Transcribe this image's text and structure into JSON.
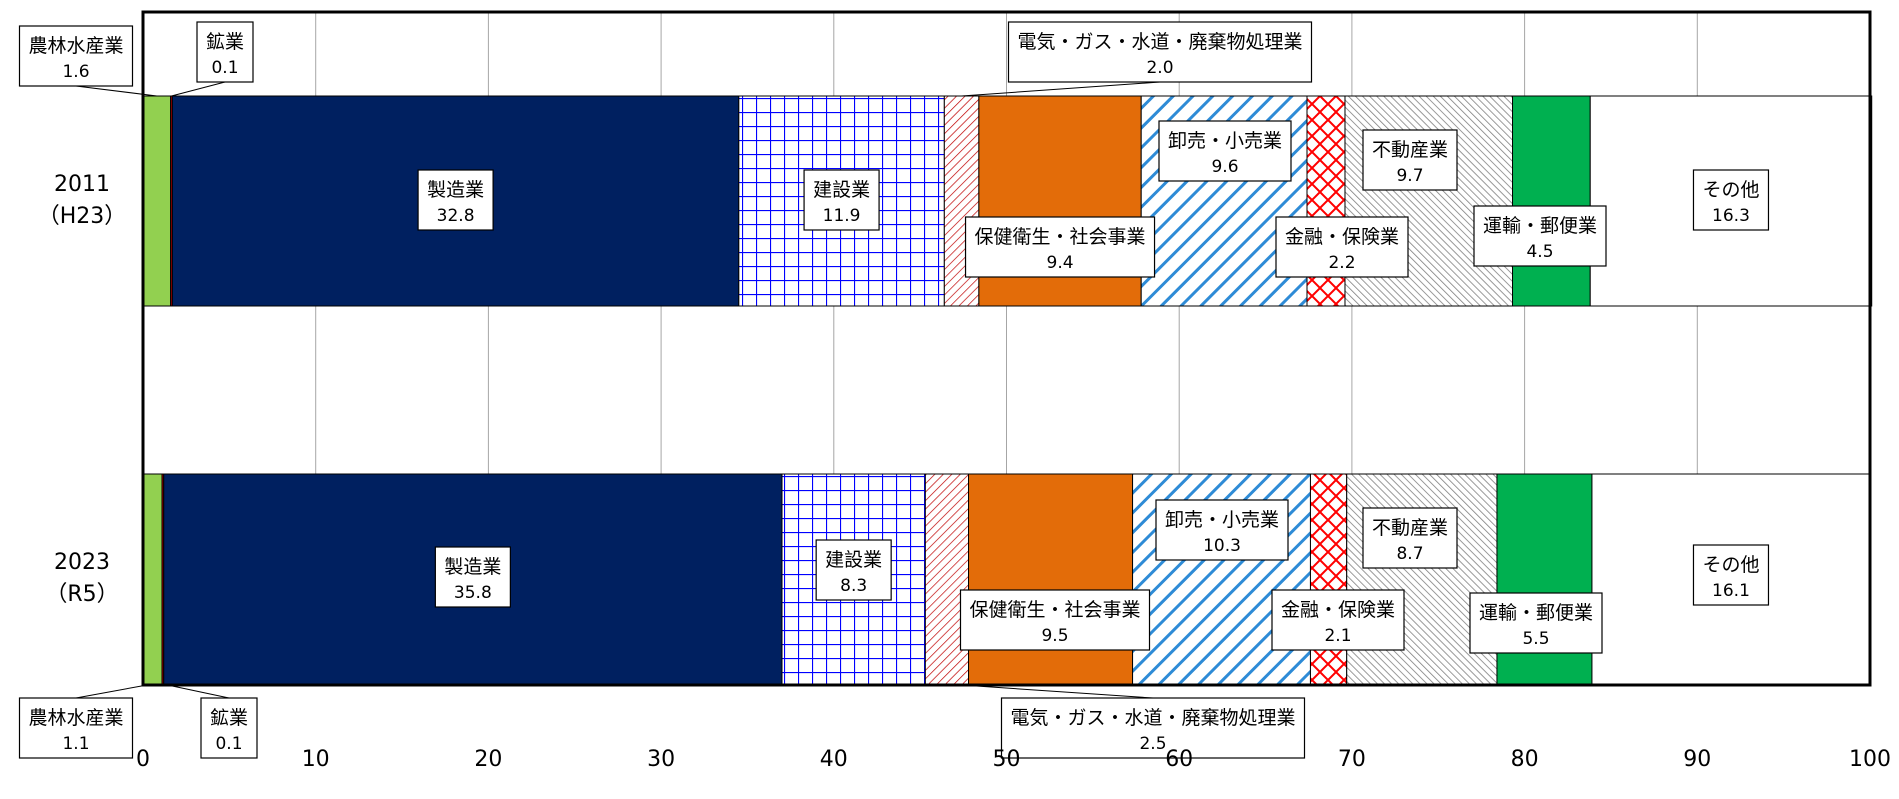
{
  "colors": {
    "agriculture": "#92D050",
    "mining": "#C00000",
    "manufacturing": "#002060",
    "construction": "#0000FF",
    "utilities": "#C00000",
    "health": "#E36C09",
    "retail": "#2E8BD6",
    "finance": "#FF0000",
    "realestate": "#808080",
    "transport": "#00B050",
    "other": "#FFFFFF",
    "grid": "#A6A6A6",
    "frame": "#000000"
  },
  "chart_data": {
    "type": "bar",
    "orientation": "horizontal",
    "stacked": true,
    "xlim": [
      0,
      100
    ],
    "x_ticks": [
      "0",
      "10",
      "20",
      "30",
      "40",
      "50",
      "60",
      "70",
      "80",
      "90",
      "100"
    ],
    "grid": true,
    "categories": [
      {
        "year": "2011",
        "era": "（H23）"
      },
      {
        "year": "2023",
        "era": "（R5）"
      }
    ],
    "series": [
      {
        "name": "農林水産業",
        "values": [
          1.6,
          1.1
        ],
        "value_labels": [
          "1.6",
          "1.1"
        ],
        "pattern": "solid",
        "color_key": "agriculture"
      },
      {
        "name": "鉱業",
        "values": [
          0.1,
          0.1
        ],
        "value_labels": [
          "0.1",
          "0.1"
        ],
        "pattern": "solid",
        "color_key": "mining"
      },
      {
        "name": "製造業",
        "values": [
          32.8,
          35.8
        ],
        "value_labels": [
          "32.8",
          "35.8"
        ],
        "pattern": "solid",
        "color_key": "manufacturing"
      },
      {
        "name": "建設業",
        "values": [
          11.9,
          8.3
        ],
        "value_labels": [
          "11.9",
          "8.3"
        ],
        "pattern": "grid",
        "color_key": "construction"
      },
      {
        "name": "電気・ガス・水道・廃棄物処理業",
        "values": [
          2.0,
          2.5
        ],
        "value_labels": [
          "2.0",
          "2.5"
        ],
        "pattern": "thin-diagonal",
        "color_key": "utilities"
      },
      {
        "name": "保健衛生・社会事業",
        "values": [
          9.4,
          9.5
        ],
        "value_labels": [
          "9.4",
          "9.5"
        ],
        "pattern": "solid",
        "color_key": "health"
      },
      {
        "name": "卸売・小売業",
        "values": [
          9.6,
          10.3
        ],
        "value_labels": [
          "9.6",
          "10.3"
        ],
        "pattern": "wide-diagonal",
        "color_key": "retail"
      },
      {
        "name": "金融・保険業",
        "values": [
          2.2,
          2.1
        ],
        "value_labels": [
          "2.2",
          "2.1"
        ],
        "pattern": "lattice",
        "color_key": "finance"
      },
      {
        "name": "不動産業",
        "values": [
          9.7,
          8.7
        ],
        "value_labels": [
          "9.7",
          "8.7"
        ],
        "pattern": "dense-diagonal",
        "color_key": "realestate"
      },
      {
        "name": "運輸・郵便業",
        "values": [
          4.5,
          5.5
        ],
        "value_labels": [
          "4.5",
          "5.5"
        ],
        "pattern": "solid",
        "color_key": "transport"
      },
      {
        "name": "その他",
        "values": [
          16.3,
          16.1
        ],
        "value_labels": [
          "16.3",
          "16.1"
        ],
        "pattern": "solid",
        "color_key": "other"
      }
    ]
  }
}
